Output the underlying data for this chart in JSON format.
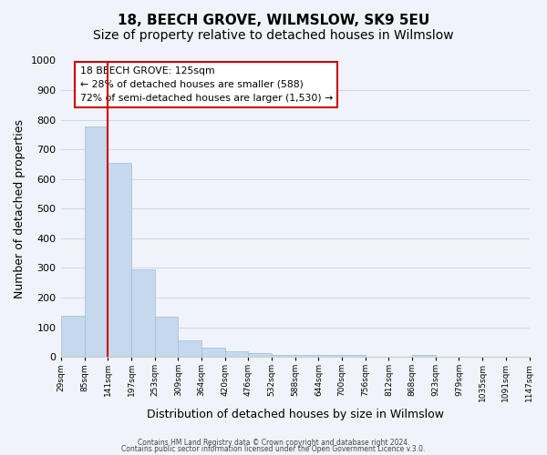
{
  "title": "18, BEECH GROVE, WILMSLOW, SK9 5EU",
  "subtitle": "Size of property relative to detached houses in Wilmslow",
  "xlabel": "Distribution of detached houses by size in Wilmslow",
  "ylabel": "Number of detached properties",
  "bar_values": [
    140,
    778,
    655,
    295,
    135,
    57,
    30,
    18,
    13,
    5,
    7,
    5,
    5,
    0,
    0,
    7,
    0,
    0,
    0,
    0
  ],
  "bin_labels": [
    "29sqm",
    "85sqm",
    "141sqm",
    "197sqm",
    "253sqm",
    "309sqm",
    "364sqm",
    "420sqm",
    "476sqm",
    "532sqm",
    "588sqm",
    "644sqm",
    "700sqm",
    "756sqm",
    "812sqm",
    "868sqm",
    "923sqm",
    "979sqm",
    "1035sqm",
    "1091sqm",
    "1147sqm"
  ],
  "bar_color": "#c5d8ed",
  "bar_edge_color": "#a0bcd8",
  "annotation_box_text": "18 BEECH GROVE: 125sqm\n← 28% of detached houses are smaller (588)\n72% of semi-detached houses are larger (1,530) →",
  "vline_color": "#cc0000",
  "vline_x": 2,
  "ylim": [
    0,
    1000
  ],
  "yticks": [
    0,
    100,
    200,
    300,
    400,
    500,
    600,
    700,
    800,
    900,
    1000
  ],
  "grid_color": "#d0d8e8",
  "background_color": "#f0f4fa",
  "footer_line1": "Contains HM Land Registry data © Crown copyright and database right 2024.",
  "footer_line2": "Contains public sector information licensed under the Open Government Licence v.3.0.",
  "title_fontsize": 11,
  "subtitle_fontsize": 10,
  "xlabel_fontsize": 9,
  "ylabel_fontsize": 9
}
